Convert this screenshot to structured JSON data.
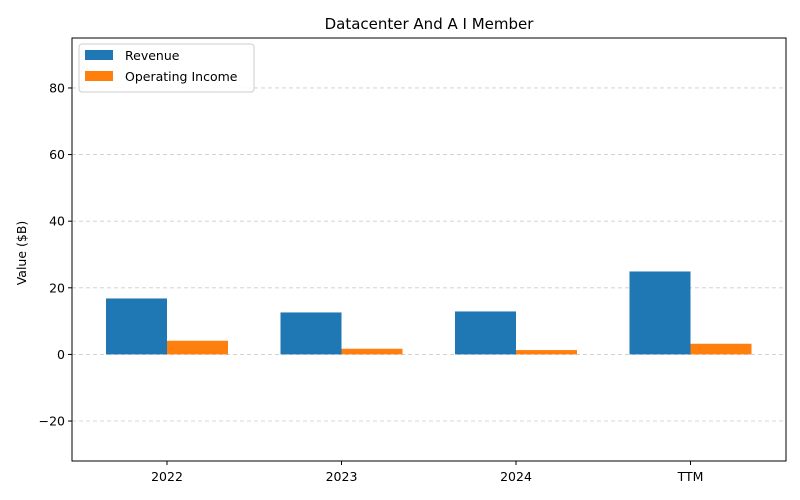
{
  "chart_data": {
    "type": "bar",
    "title": "Datacenter And A I Member",
    "xlabel": "",
    "ylabel": "Value ($B)",
    "categories": [
      "2022",
      "2023",
      "2024",
      "TTM"
    ],
    "series": [
      {
        "name": "Revenue",
        "values": [
          16.8,
          12.6,
          12.9,
          24.9
        ],
        "color": "#1f77b4"
      },
      {
        "name": "Operating Income",
        "values": [
          4.1,
          1.7,
          1.3,
          3.2
        ],
        "color": "#ff7f0e"
      }
    ],
    "ylim": [
      -32,
      95
    ],
    "yticks": [
      -20,
      0,
      20,
      40,
      60,
      80
    ],
    "ytick_labels": [
      "−20",
      "0",
      "20",
      "40",
      "60",
      "80"
    ],
    "grid": "horizontal-dashed",
    "legend_position": "top-left"
  }
}
